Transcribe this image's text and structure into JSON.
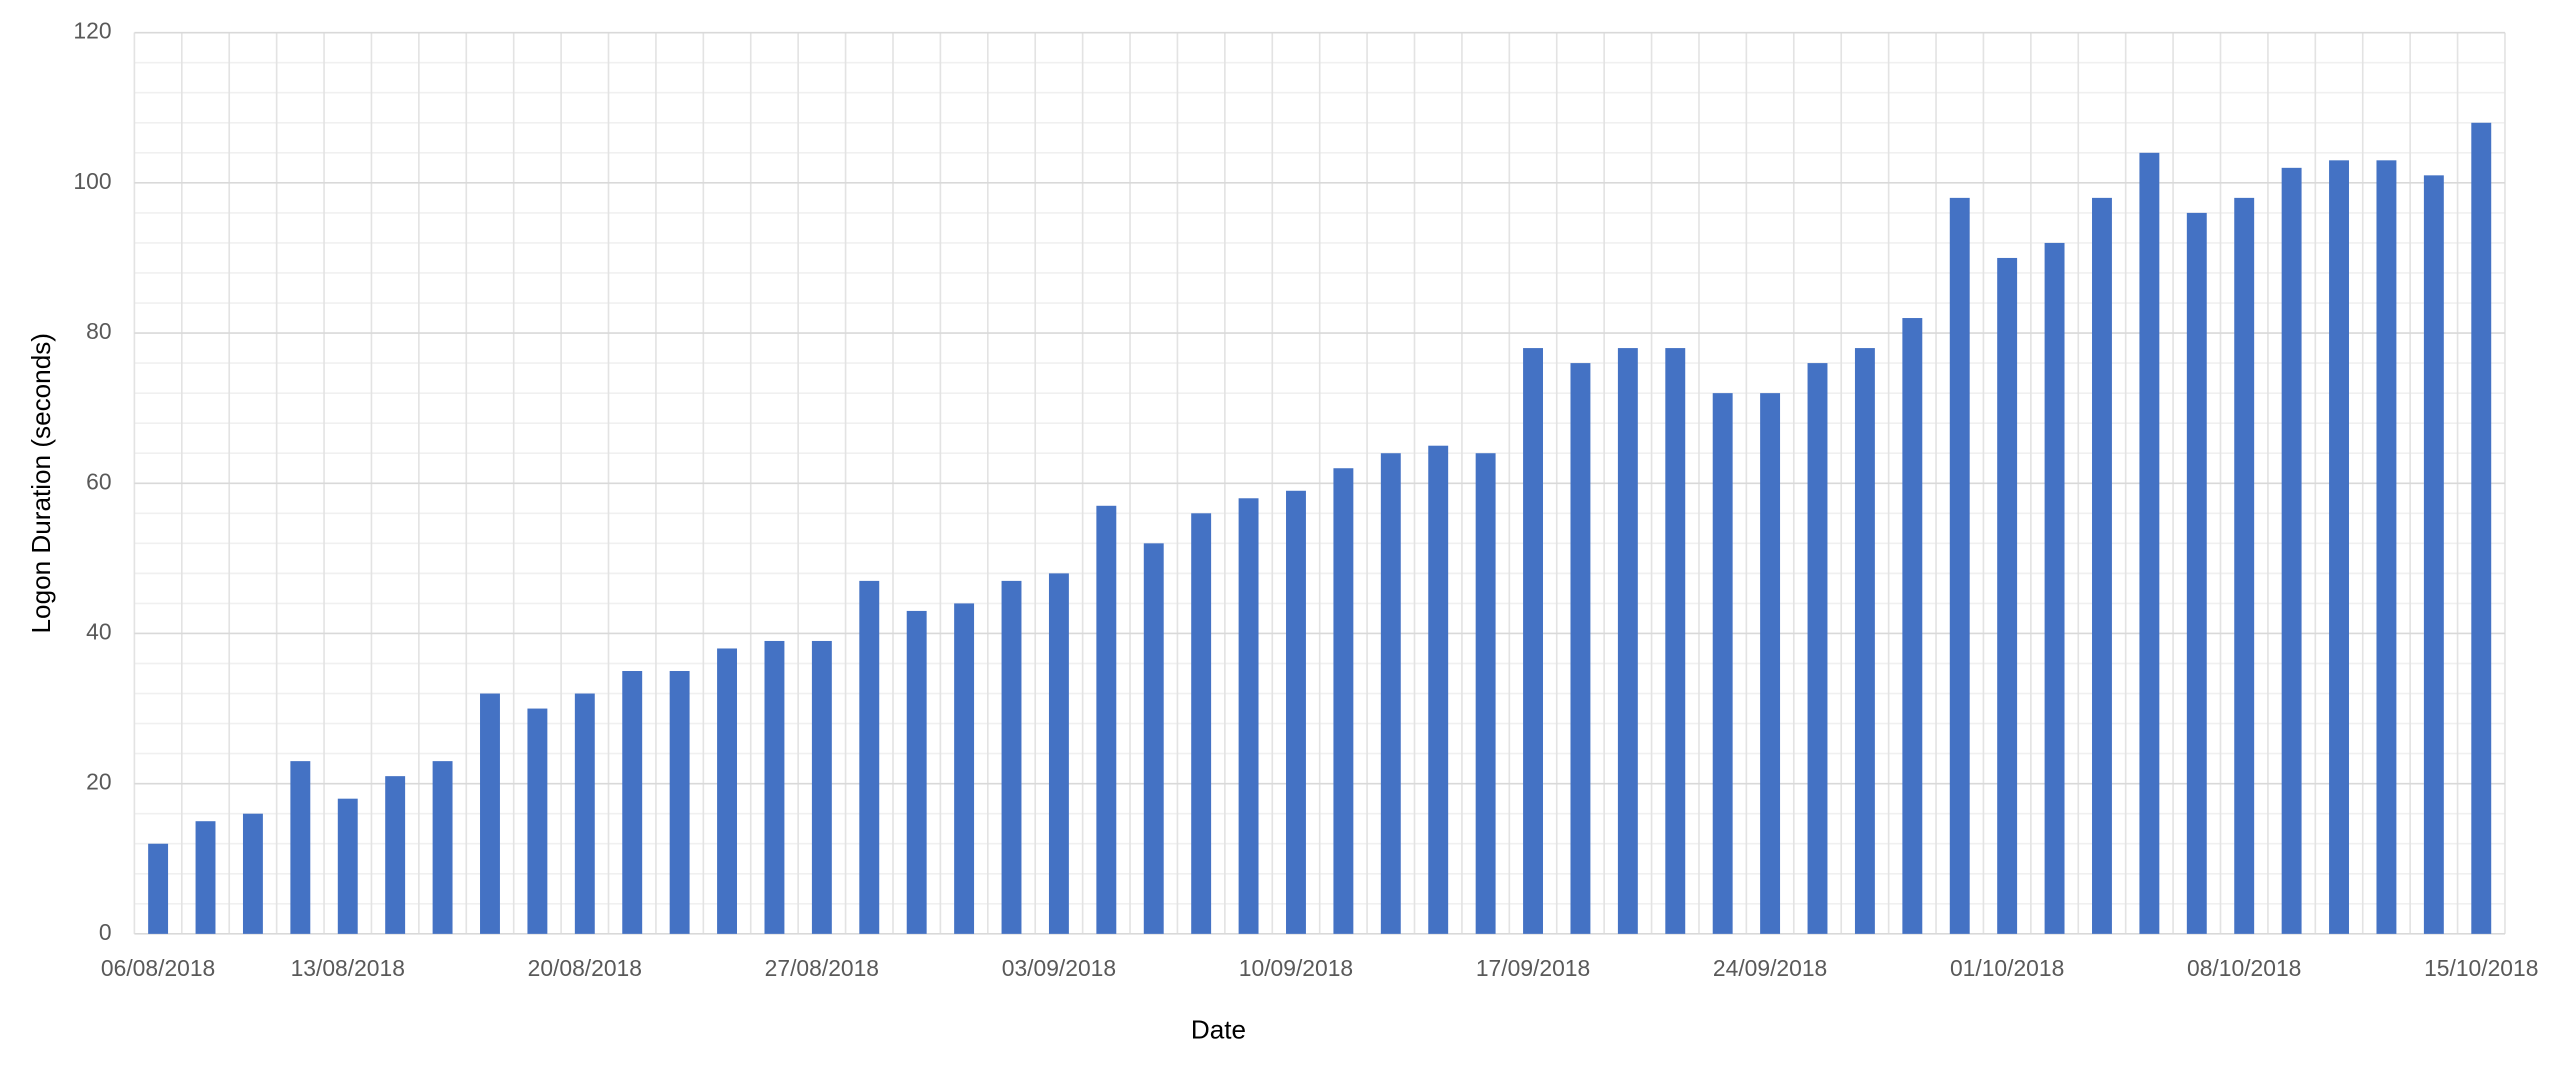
{
  "chart_data": {
    "type": "bar",
    "x_label": "Date",
    "y_label": "Logon Duration (seconds)",
    "categories": [
      "06/08/2018",
      null,
      null,
      null,
      "13/08/2018",
      null,
      null,
      null,
      null,
      "20/08/2018",
      null,
      null,
      null,
      null,
      "27/08/2018",
      null,
      null,
      null,
      null,
      "03/09/2018",
      null,
      null,
      null,
      null,
      "10/09/2018",
      null,
      null,
      null,
      null,
      "17/09/2018",
      null,
      null,
      null,
      null,
      "24/09/2018",
      null,
      null,
      null,
      null,
      "01/10/2018",
      null,
      null,
      null,
      null,
      "08/10/2018",
      null,
      null,
      null,
      null,
      "15/10/2018"
    ],
    "values": [
      12,
      15,
      16,
      23,
      18,
      21,
      23,
      32,
      30,
      32,
      35,
      35,
      38,
      39,
      39,
      47,
      43,
      44,
      47,
      48,
      57,
      52,
      56,
      58,
      59,
      62,
      64,
      65,
      64,
      78,
      76,
      78,
      78,
      72,
      72,
      76,
      78,
      82,
      98,
      90,
      92,
      98,
      104,
      96,
      98,
      102,
      103,
      103,
      101,
      108
    ],
    "color": "#4472c4",
    "ylim": [
      0,
      120
    ],
    "yticks": [
      0,
      20,
      40,
      60,
      80,
      100,
      120
    ],
    "minor_yticks": [
      4,
      8,
      12,
      16,
      24,
      28,
      32,
      36,
      44,
      48,
      52,
      56,
      64,
      68,
      72,
      76,
      84,
      88,
      92,
      96,
      104,
      108,
      112,
      116
    ],
    "grid": true
  }
}
